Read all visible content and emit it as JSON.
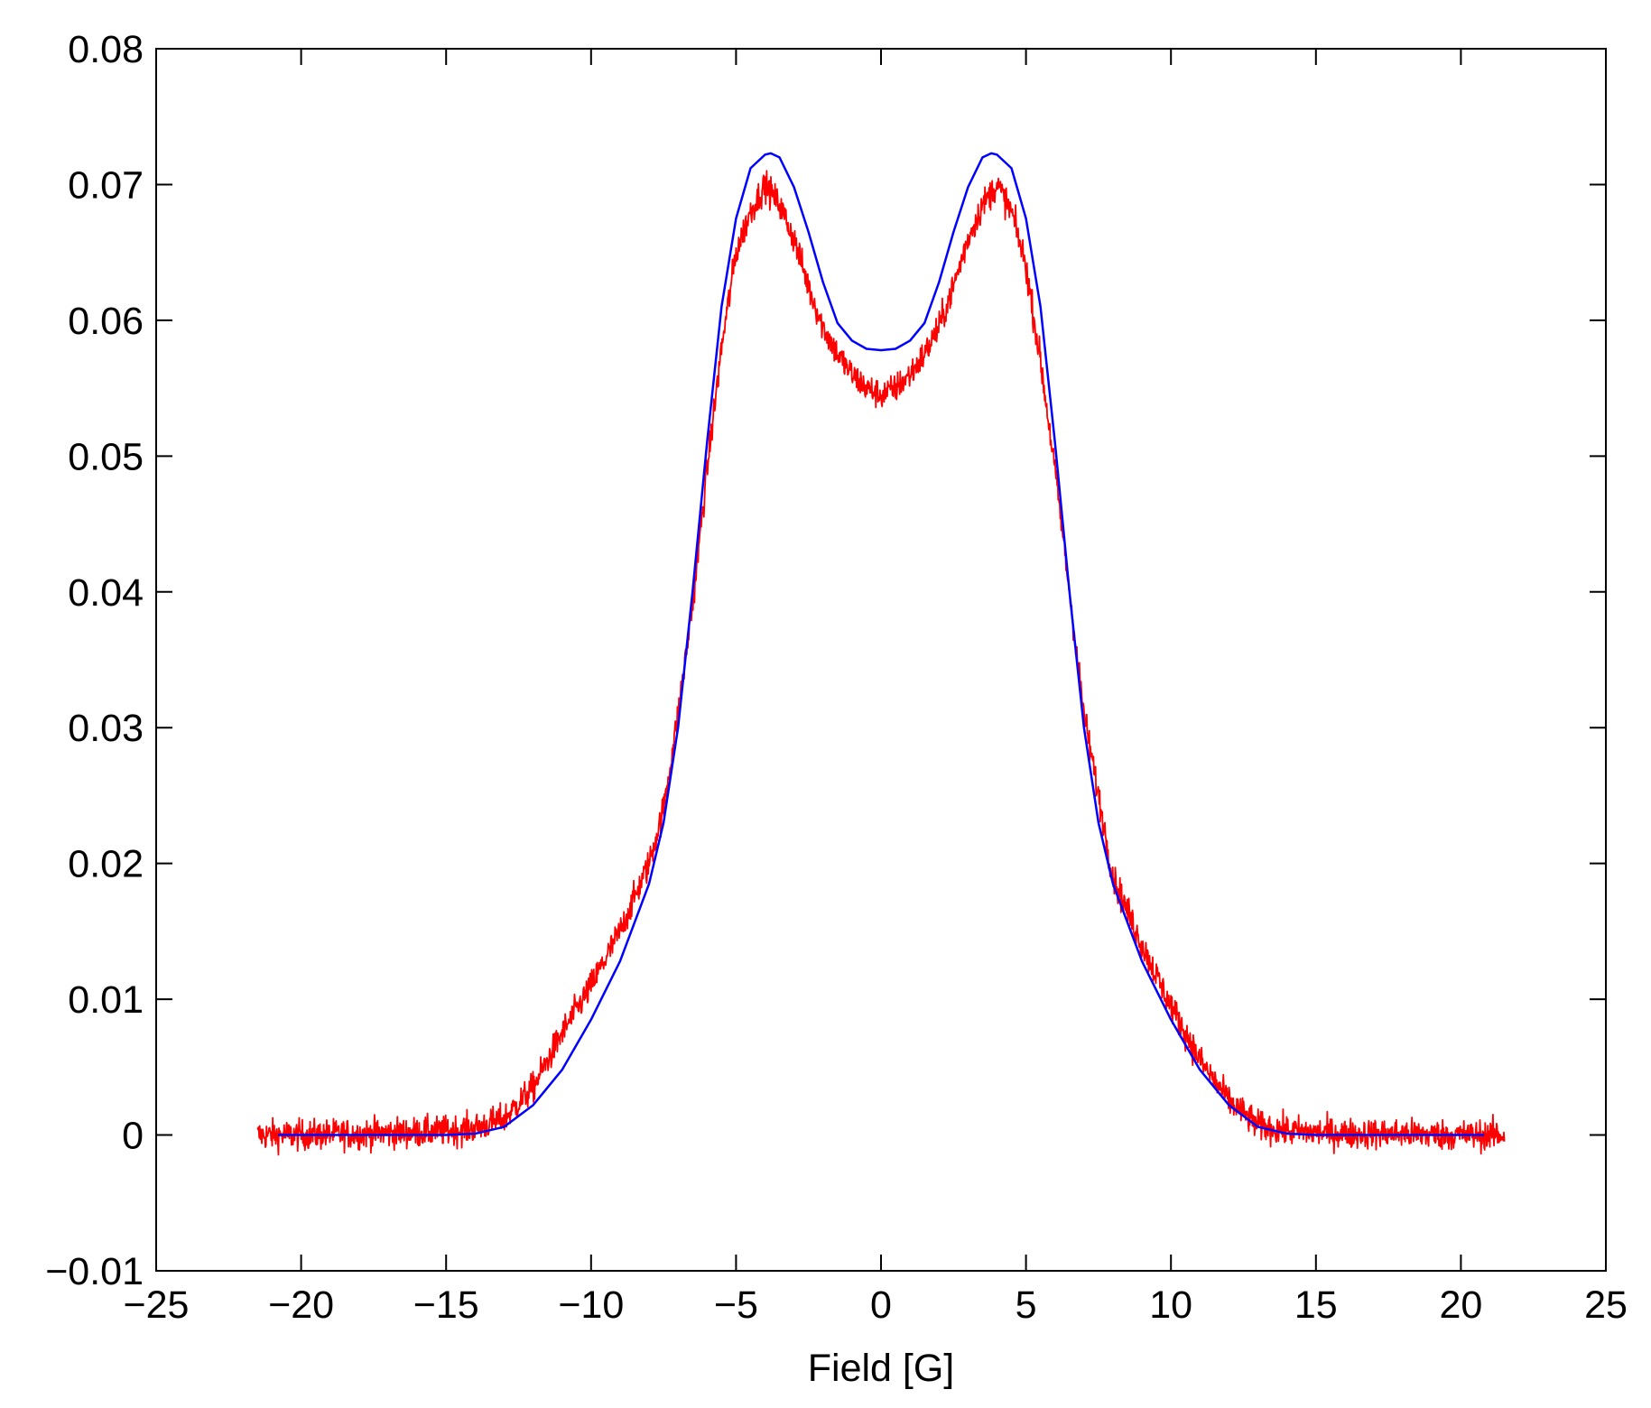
{
  "chart_data": {
    "type": "line",
    "title": "",
    "xlabel": "Field [G]",
    "ylabel": "",
    "xlim": [
      -25,
      25
    ],
    "ylim": [
      -0.01,
      0.08
    ],
    "xticks": [
      -25,
      -20,
      -15,
      -10,
      -5,
      0,
      5,
      10,
      15,
      20,
      25
    ],
    "xtick_labels": [
      "−25",
      "−20",
      "−15",
      "−10",
      "−5",
      "0",
      "5",
      "10",
      "15",
      "20",
      "25"
    ],
    "yticks": [
      -0.01,
      0,
      0.01,
      0.02,
      0.03,
      0.04,
      0.05,
      0.06,
      0.07,
      0.08
    ],
    "ytick_labels": [
      "−0.01",
      "0",
      "0.01",
      "0.02",
      "0.03",
      "0.04",
      "0.05",
      "0.06",
      "0.07",
      "0.08"
    ],
    "grid": false,
    "legend": "none",
    "series": [
      {
        "color": "#ff0000",
        "style": "noisy measured data",
        "x": [
          -21.5,
          -20,
          -18,
          -16,
          -15,
          -14,
          -13,
          -12,
          -11,
          -10,
          -9,
          -8,
          -7.5,
          -7,
          -6.5,
          -6,
          -5.5,
          -5,
          -4.5,
          -4,
          -3.5,
          -3,
          -2.5,
          -2,
          -1.5,
          -1,
          -0.5,
          0,
          0.5,
          1,
          1.5,
          2,
          2.5,
          3,
          3.5,
          4,
          4.5,
          5,
          5.5,
          6,
          6.5,
          7,
          7.5,
          8,
          9,
          10,
          11,
          12,
          13,
          14,
          15,
          16,
          18,
          20,
          21.5
        ],
        "y": [
          0,
          0,
          0.0001,
          0.0002,
          0.0003,
          0.0005,
          0.0012,
          0.0035,
          0.0075,
          0.011,
          0.015,
          0.02,
          0.024,
          0.031,
          0.039,
          0.049,
          0.058,
          0.065,
          0.068,
          0.07,
          0.0685,
          0.066,
          0.0625,
          0.0595,
          0.0575,
          0.056,
          0.055,
          0.0545,
          0.055,
          0.056,
          0.0575,
          0.0595,
          0.0625,
          0.066,
          0.0685,
          0.07,
          0.068,
          0.064,
          0.057,
          0.049,
          0.04,
          0.031,
          0.025,
          0.019,
          0.014,
          0.0095,
          0.0055,
          0.0025,
          0.0007,
          0.0003,
          0.0002,
          0.0001,
          0.0001,
          0,
          0
        ]
      },
      {
        "color": "#0000ff",
        "style": "smooth fit",
        "x": [
          -20.8,
          -18,
          -16,
          -15,
          -14,
          -13,
          -12,
          -11,
          -10,
          -9,
          -8,
          -7.5,
          -7,
          -6.5,
          -6,
          -5.5,
          -5,
          -4.5,
          -4,
          -3.8,
          -3.5,
          -3,
          -2.5,
          -2,
          -1.5,
          -1,
          -0.5,
          0,
          0.5,
          1,
          1.5,
          2,
          2.5,
          3,
          3.5,
          3.8,
          4,
          4.5,
          5,
          5.5,
          6,
          6.5,
          7,
          7.5,
          8,
          9,
          10,
          11,
          12,
          13,
          14,
          15,
          16,
          18,
          20.8
        ],
        "y": [
          0,
          0,
          0,
          0,
          0.0001,
          0.0006,
          0.0022,
          0.0048,
          0.0085,
          0.0128,
          0.0185,
          0.023,
          0.03,
          0.04,
          0.051,
          0.061,
          0.0675,
          0.0712,
          0.0722,
          0.0723,
          0.072,
          0.0698,
          0.0665,
          0.0628,
          0.0598,
          0.0585,
          0.0579,
          0.0578,
          0.0579,
          0.0585,
          0.0598,
          0.0628,
          0.0665,
          0.0698,
          0.072,
          0.0723,
          0.0722,
          0.0712,
          0.0675,
          0.061,
          0.051,
          0.04,
          0.03,
          0.023,
          0.0185,
          0.0128,
          0.0085,
          0.0048,
          0.0022,
          0.0006,
          0.0001,
          0,
          0,
          0,
          0
        ]
      }
    ]
  }
}
